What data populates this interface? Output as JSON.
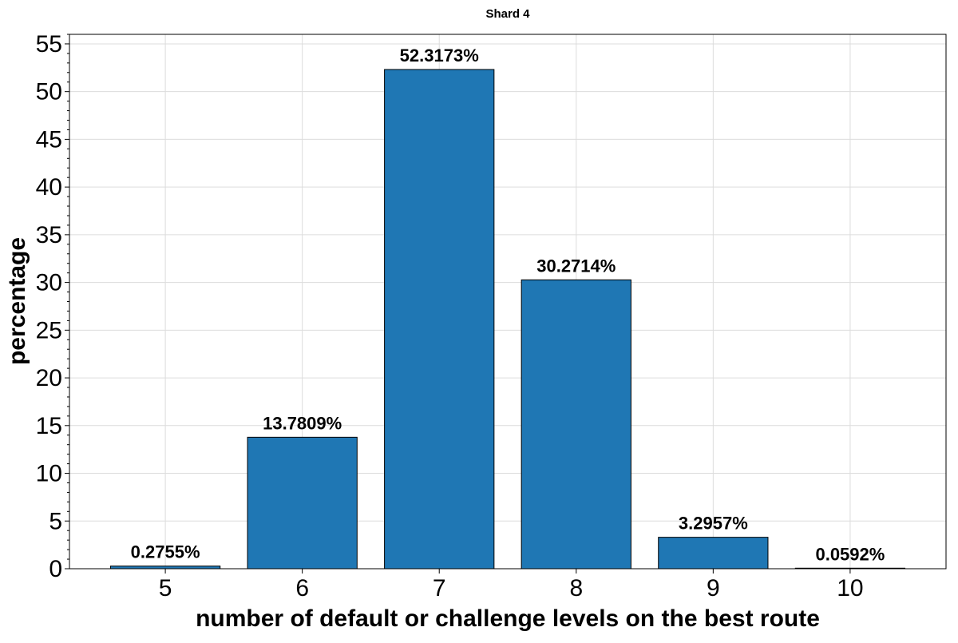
{
  "chart_data": {
    "type": "bar",
    "title": "Shard 4",
    "xlabel": "number of default or challenge levels on the best route",
    "ylabel": "percentage",
    "categories": [
      "5",
      "6",
      "7",
      "8",
      "9",
      "10"
    ],
    "values": [
      0.2755,
      13.7809,
      52.3173,
      30.2714,
      3.2957,
      0.0592
    ],
    "data_labels": [
      "0.2755%",
      "13.7809%",
      "52.3173%",
      "30.2714%",
      "3.2957%",
      "0.0592%"
    ],
    "ylim": [
      0,
      56
    ],
    "yticks": [
      0,
      5,
      10,
      15,
      20,
      25,
      30,
      35,
      40,
      45,
      50,
      55
    ],
    "grid": true,
    "bar_color": "#1f77b4",
    "edge_color": "#000000"
  }
}
